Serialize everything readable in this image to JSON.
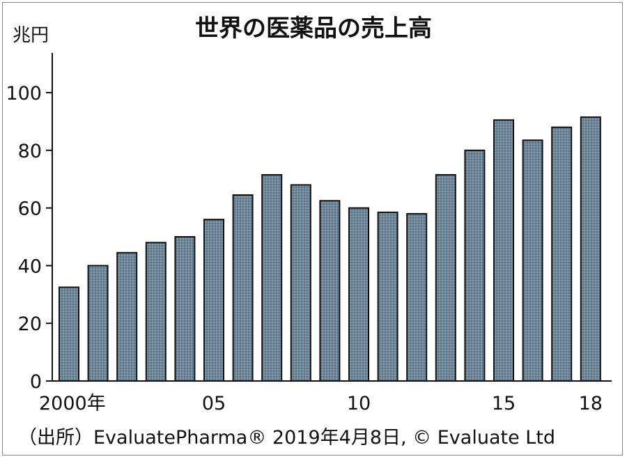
{
  "chart_data": {
    "type": "bar",
    "title": "世界の医薬品の売上高",
    "unit_label": "兆円",
    "categories": [
      "2000",
      "2001",
      "2002",
      "2003",
      "2004",
      "2005",
      "2006",
      "2007",
      "2008",
      "2009",
      "2010",
      "2011",
      "2012",
      "2013",
      "2014",
      "2015",
      "2016",
      "2017",
      "2018"
    ],
    "values": [
      32.5,
      40,
      44.5,
      48,
      50,
      56,
      64.5,
      71.5,
      68,
      62.5,
      60,
      58.5,
      58,
      71.5,
      80,
      90.5,
      83.5,
      88,
      91.5
    ],
    "x_tick_labels": [
      {
        "category": "2000",
        "text": "2000年"
      },
      {
        "category": "2005",
        "text": "05"
      },
      {
        "category": "2010",
        "text": "10"
      },
      {
        "category": "2015",
        "text": "15"
      },
      {
        "category": "2018",
        "text": "18"
      }
    ],
    "y_ticks": [
      "0",
      "20",
      "40",
      "60",
      "80",
      "100"
    ],
    "ylim": [
      0,
      112
    ],
    "grid": false,
    "legend": "none",
    "source": "（出所）EvaluatePharma® 2019年4月8日, © Evaluate Ltd",
    "colors": {
      "bar_fill": "#6d8799",
      "bar_stroke": "#111111",
      "axis": "#111111",
      "text": "#111111"
    }
  }
}
